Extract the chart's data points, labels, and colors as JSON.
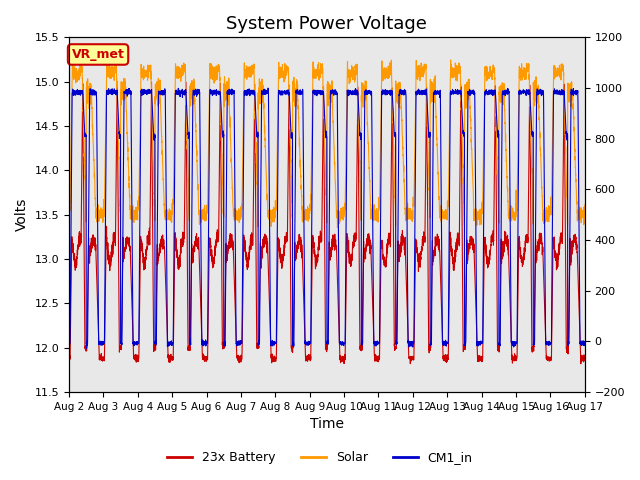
{
  "title": "System Power Voltage",
  "xlabel": "Time",
  "ylabel": "Volts",
  "ylim_left": [
    11.5,
    15.5
  ],
  "ylim_right": [
    -200,
    1200
  ],
  "yticks_left": [
    11.5,
    12.0,
    12.5,
    13.0,
    13.5,
    14.0,
    14.5,
    15.0,
    15.5
  ],
  "yticks_right": [
    -200,
    0,
    200,
    400,
    600,
    800,
    1000,
    1200
  ],
  "xtick_positions": [
    0,
    1,
    2,
    3,
    4,
    5,
    6,
    7,
    8,
    9,
    10,
    11,
    12,
    13,
    14,
    15
  ],
  "xtick_labels": [
    "Aug 2",
    "Aug 3",
    "Aug 4",
    "Aug 5",
    "Aug 6",
    "Aug 7",
    "Aug 8",
    "Aug 9",
    "Aug 10",
    "Aug 11",
    "Aug 12",
    "Aug 13",
    "Aug 14",
    "Aug 15",
    "Aug 16",
    "Aug 17"
  ],
  "n_days": 15,
  "background_color": "#e8e8e8",
  "legend_entries": [
    "23x Battery",
    "Solar",
    "CM1_in"
  ],
  "legend_colors": [
    "#cc0000",
    "#ff9900",
    "#0000cc"
  ],
  "annotation_text": "VR_met",
  "annotation_color": "#cc0000",
  "annotation_bg": "#ffff99",
  "title_fontsize": 13,
  "label_fontsize": 10,
  "tick_fontsize": 8
}
